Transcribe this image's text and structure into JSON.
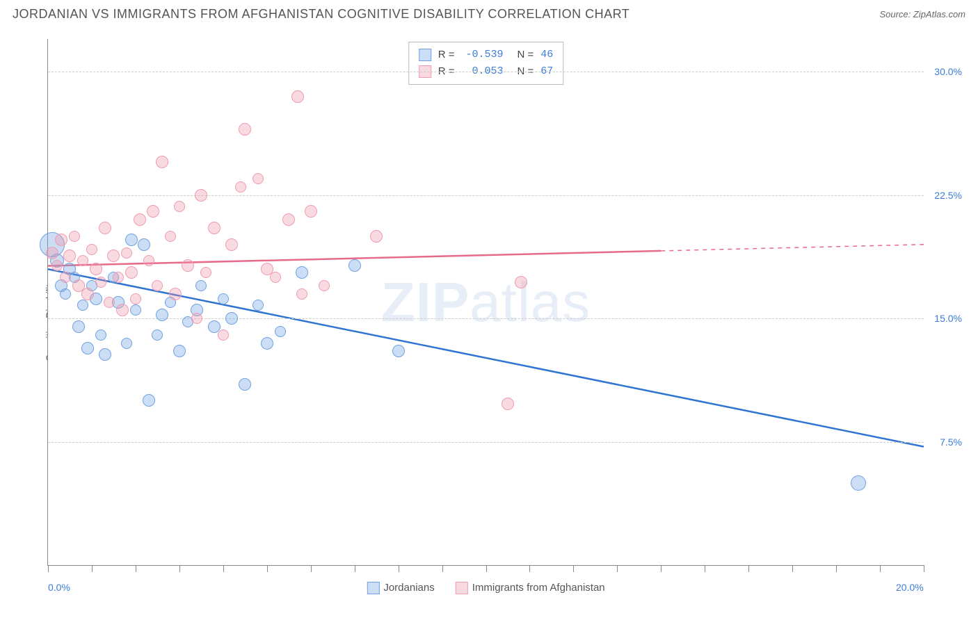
{
  "title": "JORDANIAN VS IMMIGRANTS FROM AFGHANISTAN COGNITIVE DISABILITY CORRELATION CHART",
  "source": "Source: ZipAtlas.com",
  "ylabel": "Cognitive Disability",
  "watermark_a": "ZIP",
  "watermark_b": "atlas",
  "chart": {
    "type": "scatter",
    "xlim": [
      0,
      20
    ],
    "ylim": [
      0,
      32
    ],
    "x_ticks_minor": [
      0,
      1,
      2,
      3,
      4,
      5,
      6,
      7,
      8,
      9,
      10,
      11,
      12,
      13,
      14,
      15,
      16,
      17,
      18,
      19,
      20
    ],
    "x_labels": [
      {
        "x": 0,
        "label": "0.0%"
      },
      {
        "x": 20,
        "label": "20.0%"
      }
    ],
    "y_gridlines": [
      7.5,
      15.0,
      22.5,
      30.0
    ],
    "y_labels": [
      {
        "y": 7.5,
        "label": "7.5%"
      },
      {
        "y": 15.0,
        "label": "15.0%"
      },
      {
        "y": 22.5,
        "label": "22.5%"
      },
      {
        "y": 30.0,
        "label": "30.0%"
      }
    ],
    "series": [
      {
        "name": "Jordanians",
        "color_fill": "rgba(110,160,225,0.35)",
        "color_stroke": "#6fa1e1",
        "trend_color": "#2e74d0",
        "trend": {
          "x1": 0,
          "y1": 18.0,
          "x2": 20,
          "y2": 7.2,
          "x_data_max": 20
        },
        "R": "-0.539",
        "N": "46",
        "points": [
          {
            "x": 0.1,
            "y": 19.5,
            "r": 18
          },
          {
            "x": 0.2,
            "y": 18.5,
            "r": 10
          },
          {
            "x": 0.3,
            "y": 17.0,
            "r": 9
          },
          {
            "x": 0.4,
            "y": 16.5,
            "r": 8
          },
          {
            "x": 0.5,
            "y": 18.0,
            "r": 9
          },
          {
            "x": 0.6,
            "y": 17.5,
            "r": 8
          },
          {
            "x": 0.7,
            "y": 14.5,
            "r": 9
          },
          {
            "x": 0.8,
            "y": 15.8,
            "r": 8
          },
          {
            "x": 0.9,
            "y": 13.2,
            "r": 9
          },
          {
            "x": 1.0,
            "y": 17.0,
            "r": 8
          },
          {
            "x": 1.1,
            "y": 16.2,
            "r": 9
          },
          {
            "x": 1.2,
            "y": 14.0,
            "r": 8
          },
          {
            "x": 1.3,
            "y": 12.8,
            "r": 9
          },
          {
            "x": 1.5,
            "y": 17.5,
            "r": 8
          },
          {
            "x": 1.6,
            "y": 16.0,
            "r": 9
          },
          {
            "x": 1.8,
            "y": 13.5,
            "r": 8
          },
          {
            "x": 1.9,
            "y": 19.8,
            "r": 9
          },
          {
            "x": 2.0,
            "y": 15.5,
            "r": 8
          },
          {
            "x": 2.2,
            "y": 19.5,
            "r": 9
          },
          {
            "x": 2.3,
            "y": 10.0,
            "r": 9
          },
          {
            "x": 2.5,
            "y": 14.0,
            "r": 8
          },
          {
            "x": 2.6,
            "y": 15.2,
            "r": 9
          },
          {
            "x": 2.8,
            "y": 16.0,
            "r": 8
          },
          {
            "x": 3.0,
            "y": 13.0,
            "r": 9
          },
          {
            "x": 3.2,
            "y": 14.8,
            "r": 8
          },
          {
            "x": 3.4,
            "y": 15.5,
            "r": 9
          },
          {
            "x": 3.5,
            "y": 17.0,
            "r": 8
          },
          {
            "x": 3.8,
            "y": 14.5,
            "r": 9
          },
          {
            "x": 4.0,
            "y": 16.2,
            "r": 8
          },
          {
            "x": 4.2,
            "y": 15.0,
            "r": 9
          },
          {
            "x": 4.5,
            "y": 11.0,
            "r": 9
          },
          {
            "x": 4.8,
            "y": 15.8,
            "r": 8
          },
          {
            "x": 5.0,
            "y": 13.5,
            "r": 9
          },
          {
            "x": 5.3,
            "y": 14.2,
            "r": 8
          },
          {
            "x": 5.8,
            "y": 17.8,
            "r": 9
          },
          {
            "x": 7.0,
            "y": 18.2,
            "r": 9
          },
          {
            "x": 8.0,
            "y": 13.0,
            "r": 9
          },
          {
            "x": 18.5,
            "y": 5.0,
            "r": 11
          }
        ]
      },
      {
        "name": "Immigrants from Afghanistan",
        "color_fill": "rgba(240,150,170,0.35)",
        "color_stroke": "#ef9bb0",
        "trend_color": "#e86a8a",
        "trend": {
          "x1": 0,
          "y1": 18.2,
          "x2": 20,
          "y2": 19.5,
          "x_data_max": 14
        },
        "R": "0.053",
        "N": "67",
        "points": [
          {
            "x": 0.1,
            "y": 19.0,
            "r": 9
          },
          {
            "x": 0.2,
            "y": 18.2,
            "r": 8
          },
          {
            "x": 0.3,
            "y": 19.8,
            "r": 9
          },
          {
            "x": 0.4,
            "y": 17.5,
            "r": 8
          },
          {
            "x": 0.5,
            "y": 18.8,
            "r": 9
          },
          {
            "x": 0.6,
            "y": 20.0,
            "r": 8
          },
          {
            "x": 0.7,
            "y": 17.0,
            "r": 9
          },
          {
            "x": 0.8,
            "y": 18.5,
            "r": 8
          },
          {
            "x": 0.9,
            "y": 16.5,
            "r": 9
          },
          {
            "x": 1.0,
            "y": 19.2,
            "r": 8
          },
          {
            "x": 1.1,
            "y": 18.0,
            "r": 9
          },
          {
            "x": 1.2,
            "y": 17.2,
            "r": 8
          },
          {
            "x": 1.3,
            "y": 20.5,
            "r": 9
          },
          {
            "x": 1.4,
            "y": 16.0,
            "r": 8
          },
          {
            "x": 1.5,
            "y": 18.8,
            "r": 9
          },
          {
            "x": 1.6,
            "y": 17.5,
            "r": 8
          },
          {
            "x": 1.7,
            "y": 15.5,
            "r": 9
          },
          {
            "x": 1.8,
            "y": 19.0,
            "r": 8
          },
          {
            "x": 1.9,
            "y": 17.8,
            "r": 9
          },
          {
            "x": 2.0,
            "y": 16.2,
            "r": 8
          },
          {
            "x": 2.1,
            "y": 21.0,
            "r": 9
          },
          {
            "x": 2.3,
            "y": 18.5,
            "r": 8
          },
          {
            "x": 2.4,
            "y": 21.5,
            "r": 9
          },
          {
            "x": 2.5,
            "y": 17.0,
            "r": 8
          },
          {
            "x": 2.6,
            "y": 24.5,
            "r": 9
          },
          {
            "x": 2.8,
            "y": 20.0,
            "r": 8
          },
          {
            "x": 2.9,
            "y": 16.5,
            "r": 9
          },
          {
            "x": 3.0,
            "y": 21.8,
            "r": 8
          },
          {
            "x": 3.2,
            "y": 18.2,
            "r": 9
          },
          {
            "x": 3.4,
            "y": 15.0,
            "r": 8
          },
          {
            "x": 3.5,
            "y": 22.5,
            "r": 9
          },
          {
            "x": 3.6,
            "y": 17.8,
            "r": 8
          },
          {
            "x": 3.8,
            "y": 20.5,
            "r": 9
          },
          {
            "x": 4.0,
            "y": 14.0,
            "r": 8
          },
          {
            "x": 4.2,
            "y": 19.5,
            "r": 9
          },
          {
            "x": 4.4,
            "y": 23.0,
            "r": 8
          },
          {
            "x": 4.5,
            "y": 26.5,
            "r": 9
          },
          {
            "x": 4.8,
            "y": 23.5,
            "r": 8
          },
          {
            "x": 5.0,
            "y": 18.0,
            "r": 9
          },
          {
            "x": 5.2,
            "y": 17.5,
            "r": 8
          },
          {
            "x": 5.5,
            "y": 21.0,
            "r": 9
          },
          {
            "x": 5.7,
            "y": 28.5,
            "r": 9
          },
          {
            "x": 5.8,
            "y": 16.5,
            "r": 8
          },
          {
            "x": 6.0,
            "y": 21.5,
            "r": 9
          },
          {
            "x": 6.3,
            "y": 17.0,
            "r": 8
          },
          {
            "x": 7.5,
            "y": 20.0,
            "r": 9
          },
          {
            "x": 10.8,
            "y": 17.2,
            "r": 9
          },
          {
            "x": 10.5,
            "y": 9.8,
            "r": 9
          }
        ]
      }
    ]
  },
  "legend_top": {
    "r_label": "R =",
    "n_label": "N ="
  }
}
